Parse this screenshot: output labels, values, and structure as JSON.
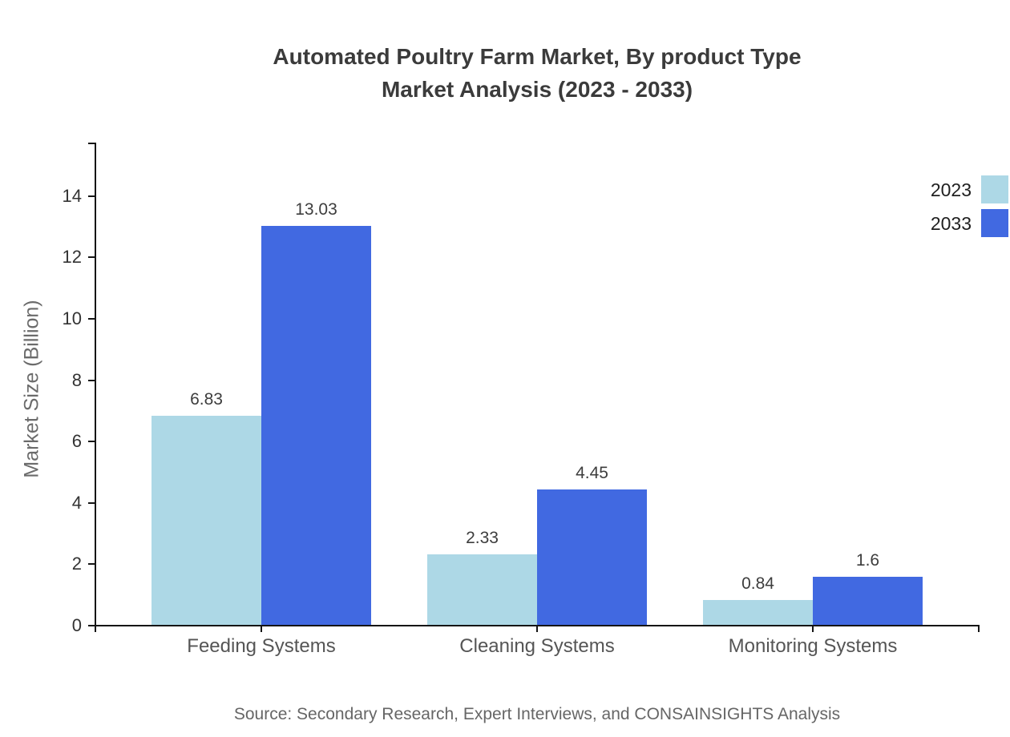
{
  "title": {
    "line1": "Automated Poultry Farm Market, By product Type",
    "line2": "Market Analysis (2023 - 2033)"
  },
  "y_axis": {
    "label": "Market Size (Billion)",
    "tick_labels": [
      "0",
      "2",
      "4",
      "6",
      "8",
      "10",
      "12",
      "14"
    ]
  },
  "legend": {
    "items": [
      {
        "label": "2023",
        "color": "#ADD8E6"
      },
      {
        "label": "2033",
        "color": "#4169E1"
      }
    ]
  },
  "source_note": "Source: Secondary Research, Expert Interviews, and CONSAINSIGHTS Analysis",
  "chart_data": {
    "type": "bar",
    "title": "Automated Poultry Farm Market, By product Type Market Analysis (2023 - 2033)",
    "categories": [
      "Feeding Systems",
      "Cleaning Systems",
      "Monitoring Systems"
    ],
    "series": [
      {
        "name": "2023",
        "color": "#ADD8E6",
        "values": [
          6.83,
          2.33,
          0.84
        ]
      },
      {
        "name": "2033",
        "color": "#4169E1",
        "values": [
          13.03,
          4.45,
          1.6
        ]
      }
    ],
    "value_labels": [
      "6.83",
      "13.03",
      "2.33",
      "4.45",
      "0.84",
      "1.6"
    ],
    "xlabel": "",
    "ylabel": "Market Size (Billion)",
    "ylim": [
      0,
      15.7
    ],
    "yticks": [
      0,
      2,
      4,
      6,
      8,
      10,
      12,
      14
    ],
    "grid": false,
    "legend_position": "top-right",
    "bar_value_labels_shown": true
  },
  "colors": {
    "series_2023": "#ADD8E6",
    "series_2033": "#4169E1",
    "axis": "#151515",
    "tick_label": "#333333",
    "category_label": "#555555",
    "value_label": "#3d3d3d",
    "title_text": "#3b3b3b",
    "source_text": "#666666",
    "background": "#ffffff"
  }
}
